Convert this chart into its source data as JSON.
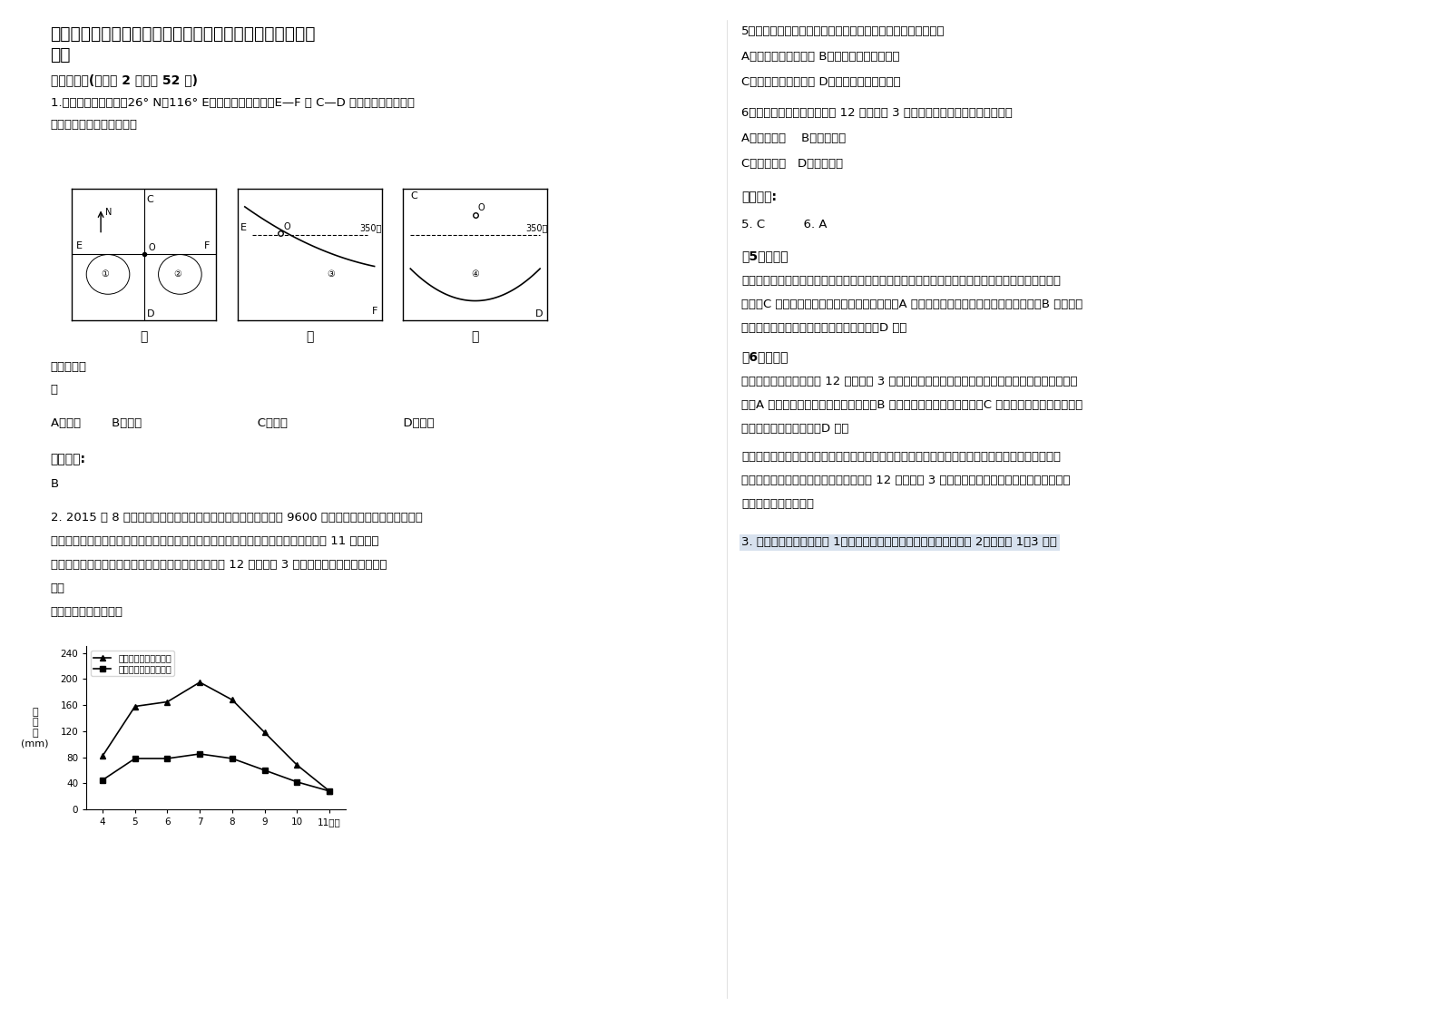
{
  "title_line1": "湖南省怀化市新晃侗族自治县兴隆中学高三地理模拟试卷含",
  "title_line2": "解析",
  "bg_color": "#ffffff",
  "text_color": "#000000",
  "section1": "一、选择题(每小题 2 分，共 52 分)",
  "q1_text": "1.下图中甲图为某地（26° N，116° E）平面图，沿甲图中E—F 与 C—D 所作的地形剖面，分\n别为乙图和丙图。读图回答",
  "q1_answer_label": "该地的地形",
  "q1_answer_sub": "是",
  "q1_options": "A．山峰        B．山脊                              C．山谷                              D．鞍部",
  "ref_answer1": "参考答案:",
  "ref_answer1_val": "B",
  "q2_text": "2. 2015 年 8 月，为了应对持续的旱情，美国洛杉矶当地政府将 9600 万个黑色塑料球投放到洛杉矶水\n库，以遮蔽阳光照射，防止水分蒸发。通过这项物理覆盖技术，洛杉矶水库每年减少了 11 亿升水的\n蒸发。下图为我国某地常年有水的水库观测数据，其中 12 月至次年 3 月时间段蒸发量极小，观测困\n难。",
  "q2_sub": "读下图完成下列各题。",
  "chart_months": [
    4,
    5,
    6,
    7,
    8,
    9,
    10,
    11
  ],
  "chart_no_cover": [
    82,
    158,
    165,
    195,
    168,
    118,
    68,
    28
  ],
  "chart_with_cover": [
    45,
    78,
    78,
    85,
    78,
    60,
    42,
    28
  ],
  "chart_ylabel": "蒸\n发\n量\n(mm)",
  "chart_xlabel": "11月份",
  "chart_legend1": "无覆盖条件下月蒸发量",
  "chart_legend2": "有覆盖条件下月蒸发量",
  "q5_text": "5．采用塑料球覆盖水面后，水库对周围环境的影响，正确的是",
  "q5_a": "A．库区空气湿度增大 B．促进浮游植物的生长",
  "q5_c": "C．库区云雾天气减少 D．库区气温日较差减小",
  "q6_text": "6．如图所示，我国某地水库 12 月至次年 3 月时间段蒸发量极小的原因可能是",
  "q6_a": "A．水面结冰    B．风速减小",
  "q6_c": "C．水质变差   D．水库干涸",
  "ref_answer2": "参考答案:",
  "ref_answer2_val": "5. C          6. A",
  "explanation5_title": "【5题详解】",
  "explanation5_text": "根据图示曲线，采用塑料球覆盖水面后，水库的蒸发量减小，水库对周围环境的影响是库区云雾天气\n减少，C 对。蒸发量减小，库区空气湿度降低，A 错。水体温度低，抑制浮游植物的生长，B 错。水库\n调节气温功能减弱，库区气温日较差增大，D 错。",
  "explanation6_title": "【6题详解】",
  "explanation6_text": "如图所示，我国某地水库 12 月至次年 3 月时间段蒸发量极小的原因可能是水面结冰，影响水分的蒸\n发，A 错。我国冬季风力强，风速较大，B 错。水质变差不影响蒸发量，C 错。图为我国某地常年有水\n的水库，水库没有干涸，D 错。",
  "point_text": "【点睛】采用塑料球覆盖水面后，水库的蒸发量减小，水库对周围环境的影响是库区云雾天气减少。\n我国冬季风力强，风速快，我国某地水库 12 月至次年 3 月时间段蒸发量极小的原因可能是水面结\n冰，影响水分的蒸发。",
  "q3_highlight": "3. 读南亚地形分布图（图 1）和该地区某城市的气候资料统计图（图 2），完成 1～3 题。"
}
